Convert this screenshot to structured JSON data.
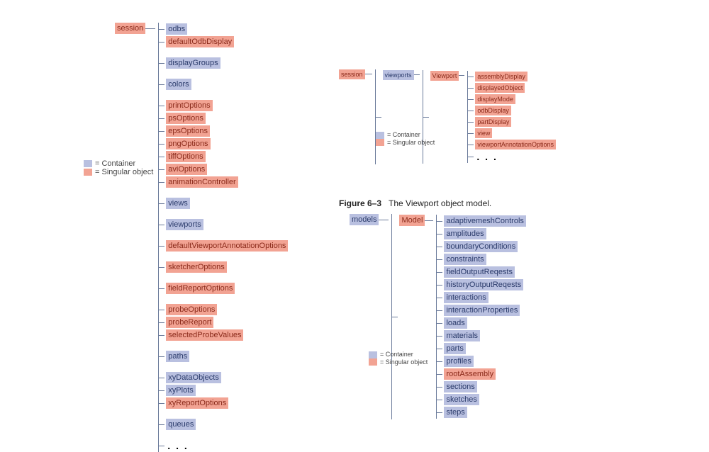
{
  "colors": {
    "container_bg": "#b9c0e0",
    "container_fg": "#2a3a6a",
    "singular_bg": "#f2a393",
    "singular_fg": "#8a2a1a",
    "connector": "#6a7a9a",
    "page_bg": "#ffffff"
  },
  "legend": {
    "container_label": "= Container",
    "singular_label": "= Singular object"
  },
  "session_tree": {
    "root": {
      "label": "session",
      "type": "singular"
    },
    "children": [
      {
        "label": "odbs",
        "type": "container"
      },
      {
        "label": "defaultOdbDisplay",
        "type": "singular"
      },
      {
        "gap": true
      },
      {
        "label": "displayGroups",
        "type": "container"
      },
      {
        "gap": true
      },
      {
        "label": "colors",
        "type": "container"
      },
      {
        "gap": true
      },
      {
        "label": "printOptions",
        "type": "singular"
      },
      {
        "label": "psOptions",
        "type": "singular"
      },
      {
        "label": "epsOptions",
        "type": "singular"
      },
      {
        "label": "pngOptions",
        "type": "singular"
      },
      {
        "label": "tiffOptions",
        "type": "singular"
      },
      {
        "label": "aviOptions",
        "type": "singular"
      },
      {
        "label": "animationController",
        "type": "singular"
      },
      {
        "gap": true
      },
      {
        "label": "views",
        "type": "container"
      },
      {
        "gap": true
      },
      {
        "label": "viewports",
        "type": "container"
      },
      {
        "gap": true
      },
      {
        "label": "defaultViewportAnnotationOptions",
        "type": "singular"
      },
      {
        "gap": true
      },
      {
        "label": "sketcherOptions",
        "type": "singular"
      },
      {
        "gap": true
      },
      {
        "label": "fieldReportOptions",
        "type": "singular"
      },
      {
        "gap": true
      },
      {
        "label": "probeOptions",
        "type": "singular"
      },
      {
        "label": "probeReport",
        "type": "singular"
      },
      {
        "label": "selectedProbeValues",
        "type": "singular"
      },
      {
        "gap": true
      },
      {
        "label": "paths",
        "type": "container"
      },
      {
        "gap": true
      },
      {
        "label": "xyDataObjects",
        "type": "container"
      },
      {
        "label": "xyPlots",
        "type": "container"
      },
      {
        "label": "xyReportOptions",
        "type": "singular"
      },
      {
        "gap": true
      },
      {
        "label": "queues",
        "type": "container"
      },
      {
        "gap": true
      },
      {
        "ellipsis": true
      }
    ]
  },
  "viewport_tree": {
    "root": {
      "label": "session",
      "type": "singular"
    },
    "level1": {
      "label": "viewports",
      "type": "container"
    },
    "level2": {
      "label": "Viewport",
      "type": "singular"
    },
    "children": [
      {
        "label": "assemblyDisplay",
        "type": "singular"
      },
      {
        "label": "displayedObject",
        "type": "singular"
      },
      {
        "label": "displayMode",
        "type": "singular"
      },
      {
        "label": "odbDisplay",
        "type": "singular"
      },
      {
        "label": "partDisplay",
        "type": "singular"
      },
      {
        "label": "view",
        "type": "singular"
      },
      {
        "label": "viewportAnnotationOptions",
        "type": "singular"
      },
      {
        "ellipsis": true
      }
    ],
    "caption": {
      "fig": "Figure 6–3",
      "text": "The Viewport object model."
    }
  },
  "model_tree": {
    "root": {
      "label": "models",
      "type": "container"
    },
    "level1": {
      "label": "Model",
      "type": "singular"
    },
    "children": [
      {
        "label": "adaptivemeshControls",
        "type": "container"
      },
      {
        "label": "amplitudes",
        "type": "container"
      },
      {
        "label": "boundaryConditions",
        "type": "container"
      },
      {
        "label": "constraints",
        "type": "container"
      },
      {
        "label": "fieldOutputReqests",
        "type": "container"
      },
      {
        "label": "historyOutputReqests",
        "type": "container"
      },
      {
        "label": "interactions",
        "type": "container"
      },
      {
        "label": "interactionProperties",
        "type": "container"
      },
      {
        "label": "loads",
        "type": "container"
      },
      {
        "label": "materials",
        "type": "container"
      },
      {
        "label": "parts",
        "type": "container"
      },
      {
        "label": "profiles",
        "type": "container"
      },
      {
        "label": "rootAssembly",
        "type": "singular"
      },
      {
        "label": "sections",
        "type": "container"
      },
      {
        "label": "sketches",
        "type": "container"
      },
      {
        "label": "steps",
        "type": "container"
      }
    ]
  }
}
